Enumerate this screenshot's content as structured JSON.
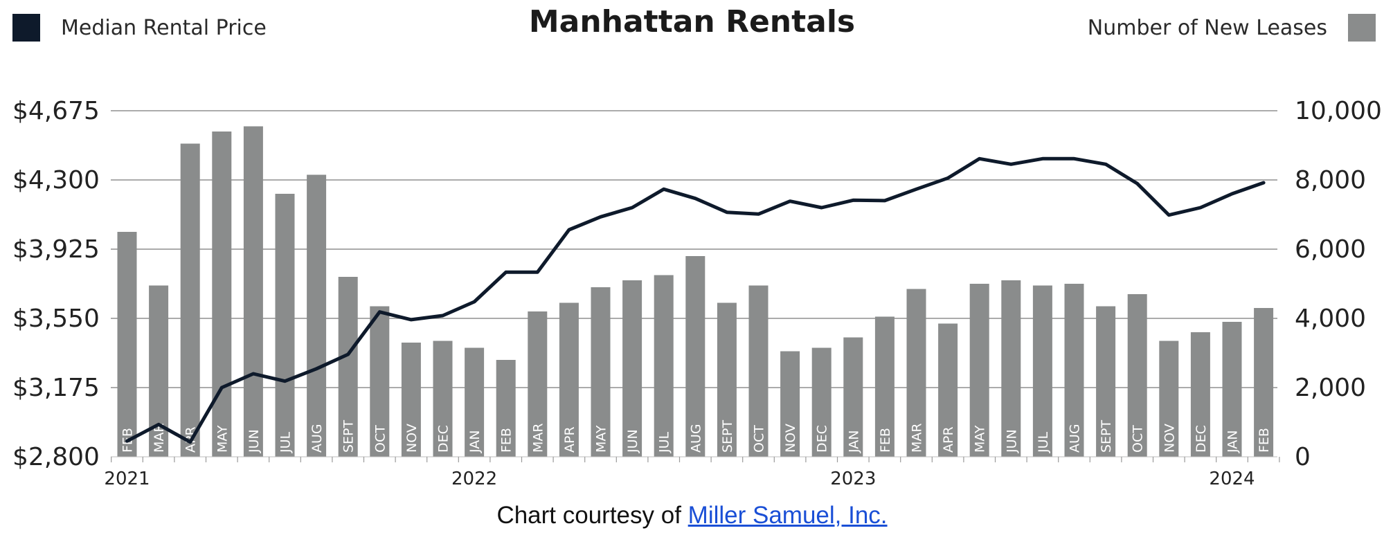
{
  "header": {
    "title": "Manhattan Rentals",
    "legend_left": "Median Rental Price",
    "legend_right": "Number of New Leases"
  },
  "colors": {
    "line": "#0e1a2b",
    "bars": "#8a8c8c",
    "grid": "#8f8f8f",
    "link": "#1a4fd6"
  },
  "credit": {
    "prefix": "Chart courtesy of ",
    "link_text": "Miller Samuel, Inc."
  },
  "chart_data": {
    "type": "bar+line",
    "title": "Manhattan Rentals",
    "categories": [
      "FEB",
      "MAR",
      "APR",
      "MAY",
      "JUN",
      "JUL",
      "AUG",
      "SEPT",
      "OCT",
      "NOV",
      "DEC",
      "JAN",
      "FEB",
      "MAR",
      "APR",
      "MAY",
      "JUN",
      "JUL",
      "AUG",
      "SEPT",
      "OCT",
      "NOV",
      "DEC",
      "JAN",
      "FEB",
      "MAR",
      "APR",
      "MAY",
      "JUN",
      "JUL",
      "AUG",
      "SEPT",
      "OCT",
      "NOV",
      "DEC",
      "JAN",
      "FEB"
    ],
    "year_labels": [
      {
        "label": "2021",
        "index": 0
      },
      {
        "label": "2022",
        "index": 11
      },
      {
        "label": "2023",
        "index": 23
      },
      {
        "label": "2024",
        "index": 35
      }
    ],
    "series": [
      {
        "name": "Number of New Leases",
        "type": "bar",
        "axis": "right",
        "values": [
          6500,
          4950,
          9050,
          9400,
          9550,
          7600,
          8150,
          5200,
          4350,
          3300,
          3350,
          3150,
          2800,
          4200,
          4450,
          4900,
          5100,
          5250,
          5800,
          4450,
          4950,
          3050,
          3150,
          3450,
          4050,
          4850,
          3850,
          5000,
          5100,
          4950,
          5000,
          4350,
          4700,
          3350,
          3600,
          3900,
          4300
        ]
      },
      {
        "name": "Median Rental Price",
        "type": "line",
        "axis": "left",
        "values": [
          2885,
          2975,
          2880,
          3175,
          3250,
          3210,
          3277,
          3355,
          3585,
          3543,
          3565,
          3640,
          3800,
          3800,
          4030,
          4100,
          4150,
          4250,
          4200,
          4125,
          4115,
          4185,
          4150,
          4190,
          4188,
          4250,
          4310,
          4415,
          4385,
          4415,
          4415,
          4385,
          4280,
          4110,
          4150,
          4225,
          4285
        ]
      }
    ],
    "y_left": {
      "ticks": [
        "$2,800",
        "$3,175",
        "$3,550",
        "$3,925",
        "$4,300",
        "$4,675"
      ],
      "min": 2800,
      "max": 4675
    },
    "y_right": {
      "ticks": [
        "0",
        "2,000",
        "4,000",
        "6,000",
        "8,000",
        "10,000"
      ],
      "min": 0,
      "max": 10000
    },
    "grid": true,
    "legend": "top"
  }
}
